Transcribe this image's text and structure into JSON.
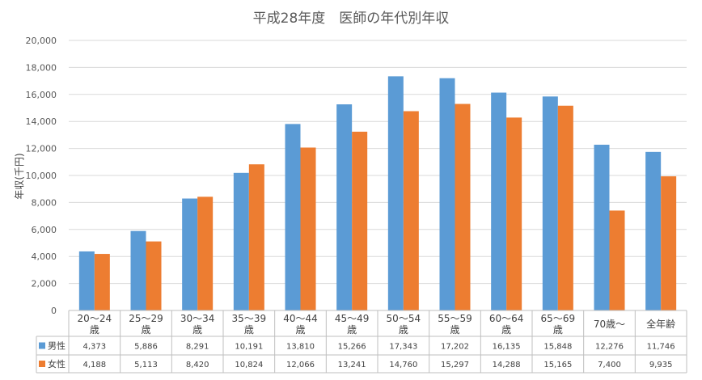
{
  "chart_data": {
    "type": "bar",
    "title": "平成28年度　医師の年代別年収",
    "ylabel": "年収(千円)",
    "xlabel": "",
    "ylim": [
      0,
      20000
    ],
    "ytick_labels": [
      "0",
      "2,000",
      "4,000",
      "6,000",
      "8,000",
      "10,000",
      "12,000",
      "14,000",
      "16,000",
      "18,000",
      "20,000"
    ],
    "grid": true,
    "legend_placement": "data-table",
    "categories": [
      [
        "20～24",
        "歳"
      ],
      [
        "25～29",
        "歳"
      ],
      [
        "30～34",
        "歳"
      ],
      [
        "35～39",
        "歳"
      ],
      [
        "40～44",
        "歳"
      ],
      [
        "45～49",
        "歳"
      ],
      [
        "50～54",
        "歳"
      ],
      [
        "55～59",
        "歳"
      ],
      [
        "60～64",
        "歳"
      ],
      [
        "65～69",
        "歳"
      ],
      [
        "70歳～"
      ],
      [
        "全年齢"
      ]
    ],
    "series": [
      {
        "name": "男性",
        "color": "#5b9bd5",
        "values": [
          4373,
          5886,
          8291,
          10191,
          13810,
          15266,
          17343,
          17202,
          16135,
          15848,
          12276,
          11746
        ],
        "labels": [
          "4,373",
          "5,886",
          "8,291",
          "10,191",
          "13,810",
          "15,266",
          "17,343",
          "17,202",
          "16,135",
          "15,848",
          "12,276",
          "11,746"
        ]
      },
      {
        "name": "女性",
        "color": "#ed7d31",
        "values": [
          4188,
          5113,
          8420,
          10824,
          12066,
          13241,
          14760,
          15297,
          14288,
          15165,
          7400,
          9935
        ],
        "labels": [
          "4,188",
          "5,113",
          "8,420",
          "10,824",
          "12,066",
          "13,241",
          "14,760",
          "15,297",
          "14,288",
          "15,165",
          "7,400",
          "9,935"
        ]
      }
    ]
  }
}
